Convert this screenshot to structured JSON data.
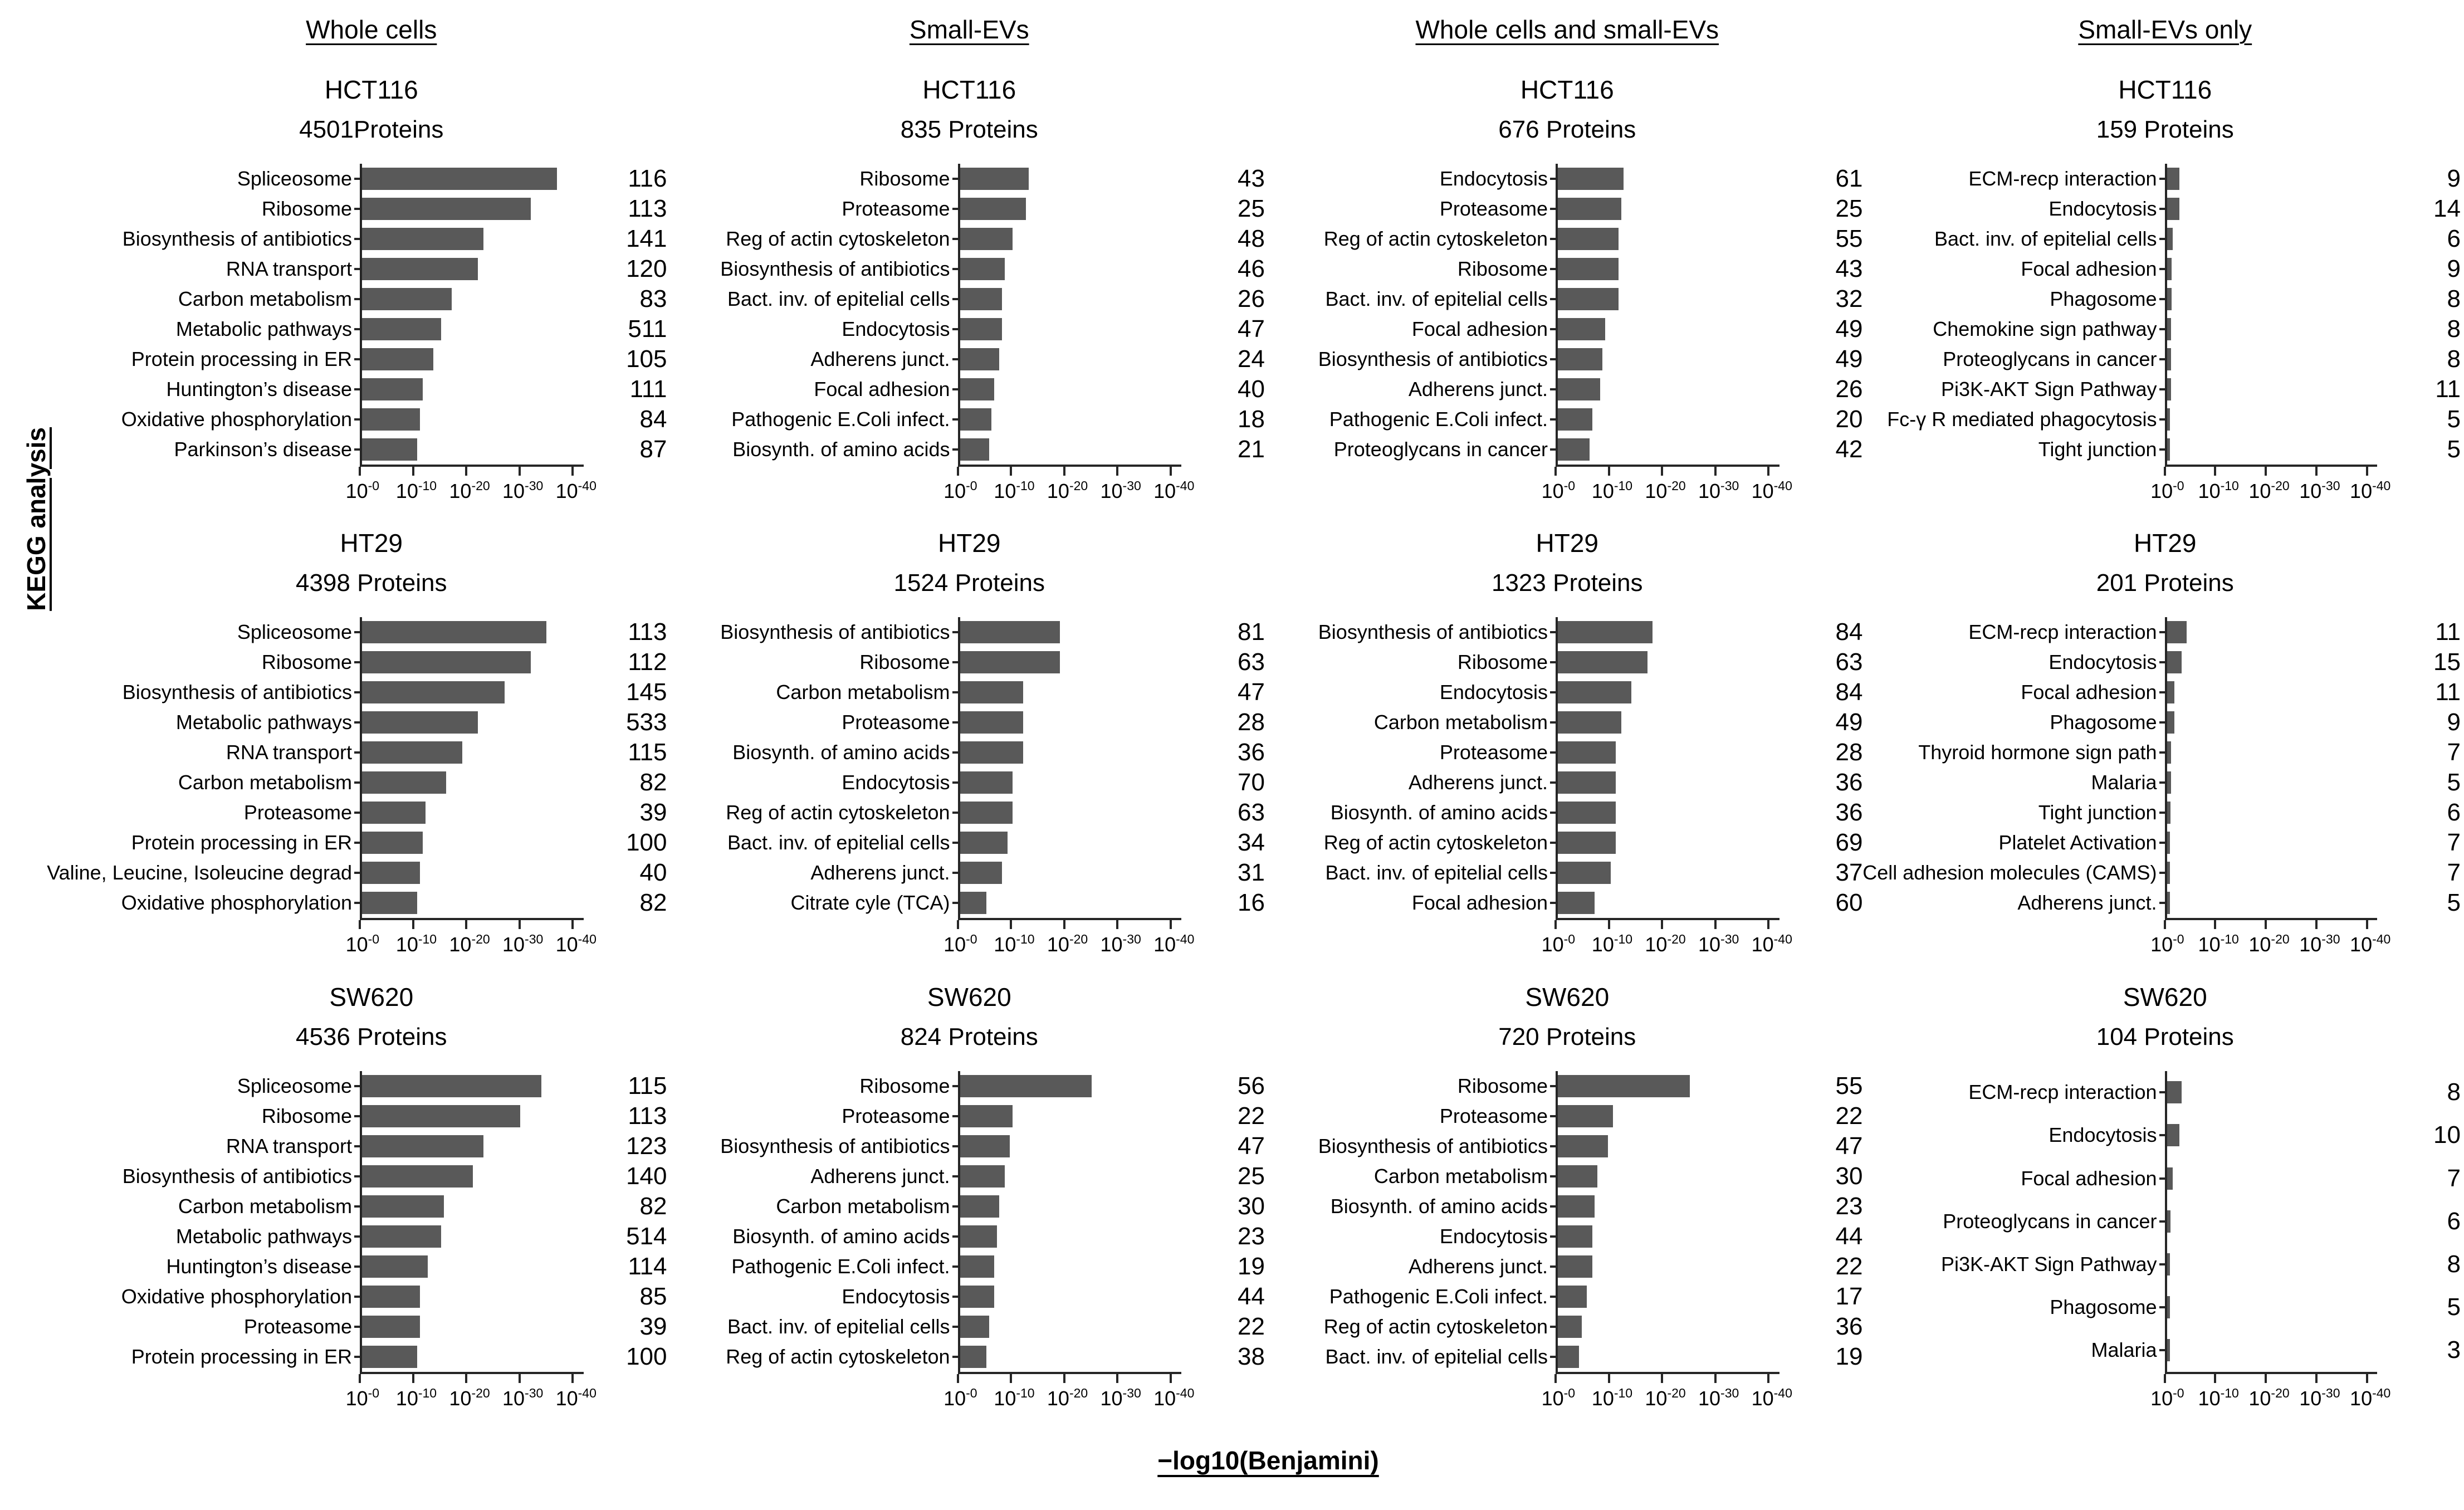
{
  "chart_data": {
    "type": "bar",
    "orientation": "horizontal",
    "sidebar_label": "KEGG analysis",
    "columns": [
      "Whole cells",
      "Small-EVs",
      "Whole cells and small-EVs",
      "Small-EVs only"
    ],
    "x_axis": {
      "label": "−log10(Benjamini)",
      "tick_base": "10",
      "tick_exponents": [
        "-0",
        "-10",
        "-20",
        "-30",
        "-40"
      ],
      "tick_values": [
        0,
        10,
        20,
        30,
        40
      ],
      "scale_max": 42,
      "scale_note": "bars show -log10(Benjamini); axis drawn as 10^-x from 10^-0 to 10^-40"
    },
    "charts": [
      {
        "type": "bar",
        "column": "Whole cells",
        "col_index": 0,
        "row_index": 0,
        "cell_line": "HCT116",
        "proteins_label": "4501Proteins",
        "categories": [
          "Spliceosome",
          "Ribosome",
          "Biosynthesis of antibiotics",
          "RNA transport",
          "Carbon metabolism",
          "Metabolic pathways",
          "Protein processing in ER",
          "Huntington’s disease",
          "Oxidative phosphorylation",
          "Parkinson’s disease"
        ],
        "values_neg_log10": [
          37,
          32,
          23,
          22,
          17,
          15,
          13.5,
          11.5,
          11,
          10.5
        ],
        "counts": [
          116,
          113,
          141,
          120,
          83,
          511,
          105,
          111,
          84,
          87
        ]
      },
      {
        "type": "bar",
        "column": "Small-EVs",
        "col_index": 1,
        "row_index": 0,
        "cell_line": "HCT116",
        "proteins_label": "835 Proteins",
        "categories": [
          "Ribosome",
          "Proteasome",
          "Reg of actin cytoskeleton",
          "Biosynthesis of antibiotics",
          "Bact. inv. of epitelial cells",
          "Endocytosis",
          "Adherens junct.",
          "Focal adhesion",
          "Pathogenic E.Coli infect.",
          "Biosynth. of amino acids"
        ],
        "values_neg_log10": [
          13,
          12.5,
          10,
          8.5,
          8,
          8,
          7.5,
          6.5,
          6,
          5.5
        ],
        "counts": [
          43,
          25,
          48,
          46,
          26,
          47,
          24,
          40,
          18,
          21
        ]
      },
      {
        "type": "bar",
        "column": "Whole cells and small-EVs",
        "col_index": 2,
        "row_index": 0,
        "cell_line": "HCT116",
        "proteins_label": "676 Proteins",
        "categories": [
          "Endocytosis",
          "Proteasome",
          "Reg of actin cytoskeleton",
          "Ribosome",
          "Bact. inv. of epitelial cells",
          "Focal adhesion",
          "Biosynthesis of antibiotics",
          "Adherens junct.",
          "Pathogenic E.Coli infect.",
          "Proteoglycans in cancer"
        ],
        "values_neg_log10": [
          12.5,
          12,
          11.5,
          11.5,
          11.5,
          9,
          8.5,
          8,
          6.5,
          6
        ],
        "counts": [
          61,
          25,
          55,
          43,
          32,
          49,
          49,
          26,
          20,
          42
        ]
      },
      {
        "type": "bar",
        "column": "Small-EVs only",
        "col_index": 3,
        "row_index": 0,
        "cell_line": "HCT116",
        "proteins_label": "159 Proteins",
        "categories": [
          "ECM-recp interaction",
          "Endocytosis",
          "Bact. inv. of epitelial cells",
          "Focal adhesion",
          "Phagosome",
          "Chemokine sign pathway",
          "Proteoglycans in cancer",
          "Pi3K-AKT Sign Pathway",
          "Fc-γ R mediated phagocytosis",
          "Tight junction"
        ],
        "values_neg_log10": [
          2.5,
          2.5,
          1.2,
          1,
          1,
          0.8,
          0.8,
          0.8,
          0.6,
          0.6
        ],
        "counts": [
          9,
          14,
          6,
          9,
          8,
          8,
          8,
          11,
          5,
          5
        ]
      },
      {
        "type": "bar",
        "column": "Whole cells",
        "col_index": 0,
        "row_index": 1,
        "cell_line": "HT29",
        "proteins_label": "4398 Proteins",
        "categories": [
          "Spliceosome",
          "Ribosome",
          "Biosynthesis of antibiotics",
          "Metabolic pathways",
          "RNA transport",
          "Carbon metabolism",
          "Proteasome",
          "Protein processing in ER",
          "Valine, Leucine, Isoleucine degrad",
          "Oxidative phosphorylation"
        ],
        "values_neg_log10": [
          35,
          32,
          27,
          22,
          19,
          16,
          12,
          11.5,
          11,
          10.5
        ],
        "counts": [
          113,
          112,
          145,
          533,
          115,
          82,
          39,
          100,
          40,
          82
        ]
      },
      {
        "type": "bar",
        "column": "Small-EVs",
        "col_index": 1,
        "row_index": 1,
        "cell_line": "HT29",
        "proteins_label": "1524 Proteins",
        "categories": [
          "Biosynthesis of antibiotics",
          "Ribosome",
          "Carbon metabolism",
          "Proteasome",
          "Biosynth. of amino acids",
          "Endocytosis",
          "Reg of actin cytoskeleton",
          "Bact. inv. of epitelial cells",
          "Adherens junct.",
          "Citrate cyle (TCA)"
        ],
        "values_neg_log10": [
          19,
          19,
          12,
          12,
          12,
          10,
          10,
          9,
          8,
          5
        ],
        "counts": [
          81,
          63,
          47,
          28,
          36,
          70,
          63,
          34,
          31,
          16
        ]
      },
      {
        "type": "bar",
        "column": "Whole cells and small-EVs",
        "col_index": 2,
        "row_index": 1,
        "cell_line": "HT29",
        "proteins_label": "1323 Proteins",
        "categories": [
          "Biosynthesis of antibiotics",
          "Ribosome",
          "Endocytosis",
          "Carbon metabolism",
          "Proteasome",
          "Adherens junct.",
          "Biosynth. of amino acids",
          "Reg of actin cytoskeleton",
          "Bact. inv. of epitelial cells",
          "Focal adhesion"
        ],
        "values_neg_log10": [
          18,
          17,
          14,
          12,
          11,
          11,
          11,
          11,
          10,
          7
        ],
        "counts": [
          84,
          63,
          84,
          49,
          28,
          36,
          36,
          69,
          37,
          60
        ]
      },
      {
        "type": "bar",
        "column": "Small-EVs only",
        "col_index": 3,
        "row_index": 1,
        "cell_line": "HT29",
        "proteins_label": "201 Proteins",
        "categories": [
          "ECM-recp interaction",
          "Endocytosis",
          "Focal adhesion",
          "Phagosome",
          "Thyroid hormone sign path",
          "Malaria",
          "Tight junction",
          "Platelet Activation",
          "Cell adhesion molecules (CAMS)",
          "Adherens junct."
        ],
        "values_neg_log10": [
          4,
          3,
          1.5,
          1.5,
          0.8,
          0.8,
          0.7,
          0.6,
          0.6,
          0.5
        ],
        "counts": [
          11,
          15,
          11,
          9,
          7,
          5,
          6,
          7,
          7,
          5
        ]
      },
      {
        "type": "bar",
        "column": "Whole cells",
        "col_index": 0,
        "row_index": 2,
        "cell_line": "SW620",
        "proteins_label": "4536 Proteins",
        "categories": [
          "Spliceosome",
          "Ribosome",
          "RNA transport",
          "Biosynthesis of antibiotics",
          "Carbon metabolism",
          "Metabolic pathways",
          "Huntington’s disease",
          "Oxidative phosphorylation",
          "Proteasome",
          "Protein processing in ER"
        ],
        "values_neg_log10": [
          34,
          30,
          23,
          21,
          15.5,
          15,
          12.5,
          11,
          11,
          10.5
        ],
        "counts": [
          115,
          113,
          123,
          140,
          82,
          514,
          114,
          85,
          39,
          100
        ]
      },
      {
        "type": "bar",
        "column": "Small-EVs",
        "col_index": 1,
        "row_index": 2,
        "cell_line": "SW620",
        "proteins_label": "824 Proteins",
        "categories": [
          "Ribosome",
          "Proteasome",
          "Biosynthesis of antibiotics",
          "Adherens junct.",
          "Carbon metabolism",
          "Biosynth. of amino acids",
          "Pathogenic E.Coli infect.",
          "Endocytosis",
          "Bact. inv. of epitelial cells",
          "Reg of actin cytoskeleton"
        ],
        "values_neg_log10": [
          25,
          10,
          9.5,
          8.5,
          7.5,
          7,
          6.5,
          6.5,
          5.5,
          5
        ],
        "counts": [
          56,
          22,
          47,
          25,
          30,
          23,
          19,
          44,
          22,
          38
        ]
      },
      {
        "type": "bar",
        "column": "Whole cells and small-EVs",
        "col_index": 2,
        "row_index": 2,
        "cell_line": "SW620",
        "proteins_label": "720 Proteins",
        "categories": [
          "Ribosome",
          "Proteasome",
          "Biosynthesis of antibiotics",
          "Carbon metabolism",
          "Biosynth. of amino acids",
          "Endocytosis",
          "Adherens junct.",
          "Pathogenic E.Coli infect.",
          "Reg of actin cytoskeleton",
          "Bact. inv. of epitelial cells"
        ],
        "values_neg_log10": [
          25,
          10.5,
          9.5,
          7.5,
          7,
          6.5,
          6.5,
          5.5,
          4.5,
          4
        ],
        "counts": [
          55,
          22,
          47,
          30,
          23,
          44,
          22,
          17,
          36,
          19
        ]
      },
      {
        "type": "bar",
        "column": "Small-EVs only",
        "col_index": 3,
        "row_index": 2,
        "cell_line": "SW620",
        "proteins_label": "104 Proteins",
        "categories": [
          "ECM-recp interaction",
          "Endocytosis",
          "Focal adhesion",
          "Proteoglycans in cancer",
          "Pi3K-AKT Sign Pathway",
          "Phagosome",
          "Malaria"
        ],
        "values_neg_log10": [
          3,
          2.5,
          1.2,
          0.7,
          0.6,
          0.5,
          0.4
        ],
        "counts": [
          8,
          10,
          7,
          6,
          8,
          5,
          3
        ]
      }
    ]
  }
}
